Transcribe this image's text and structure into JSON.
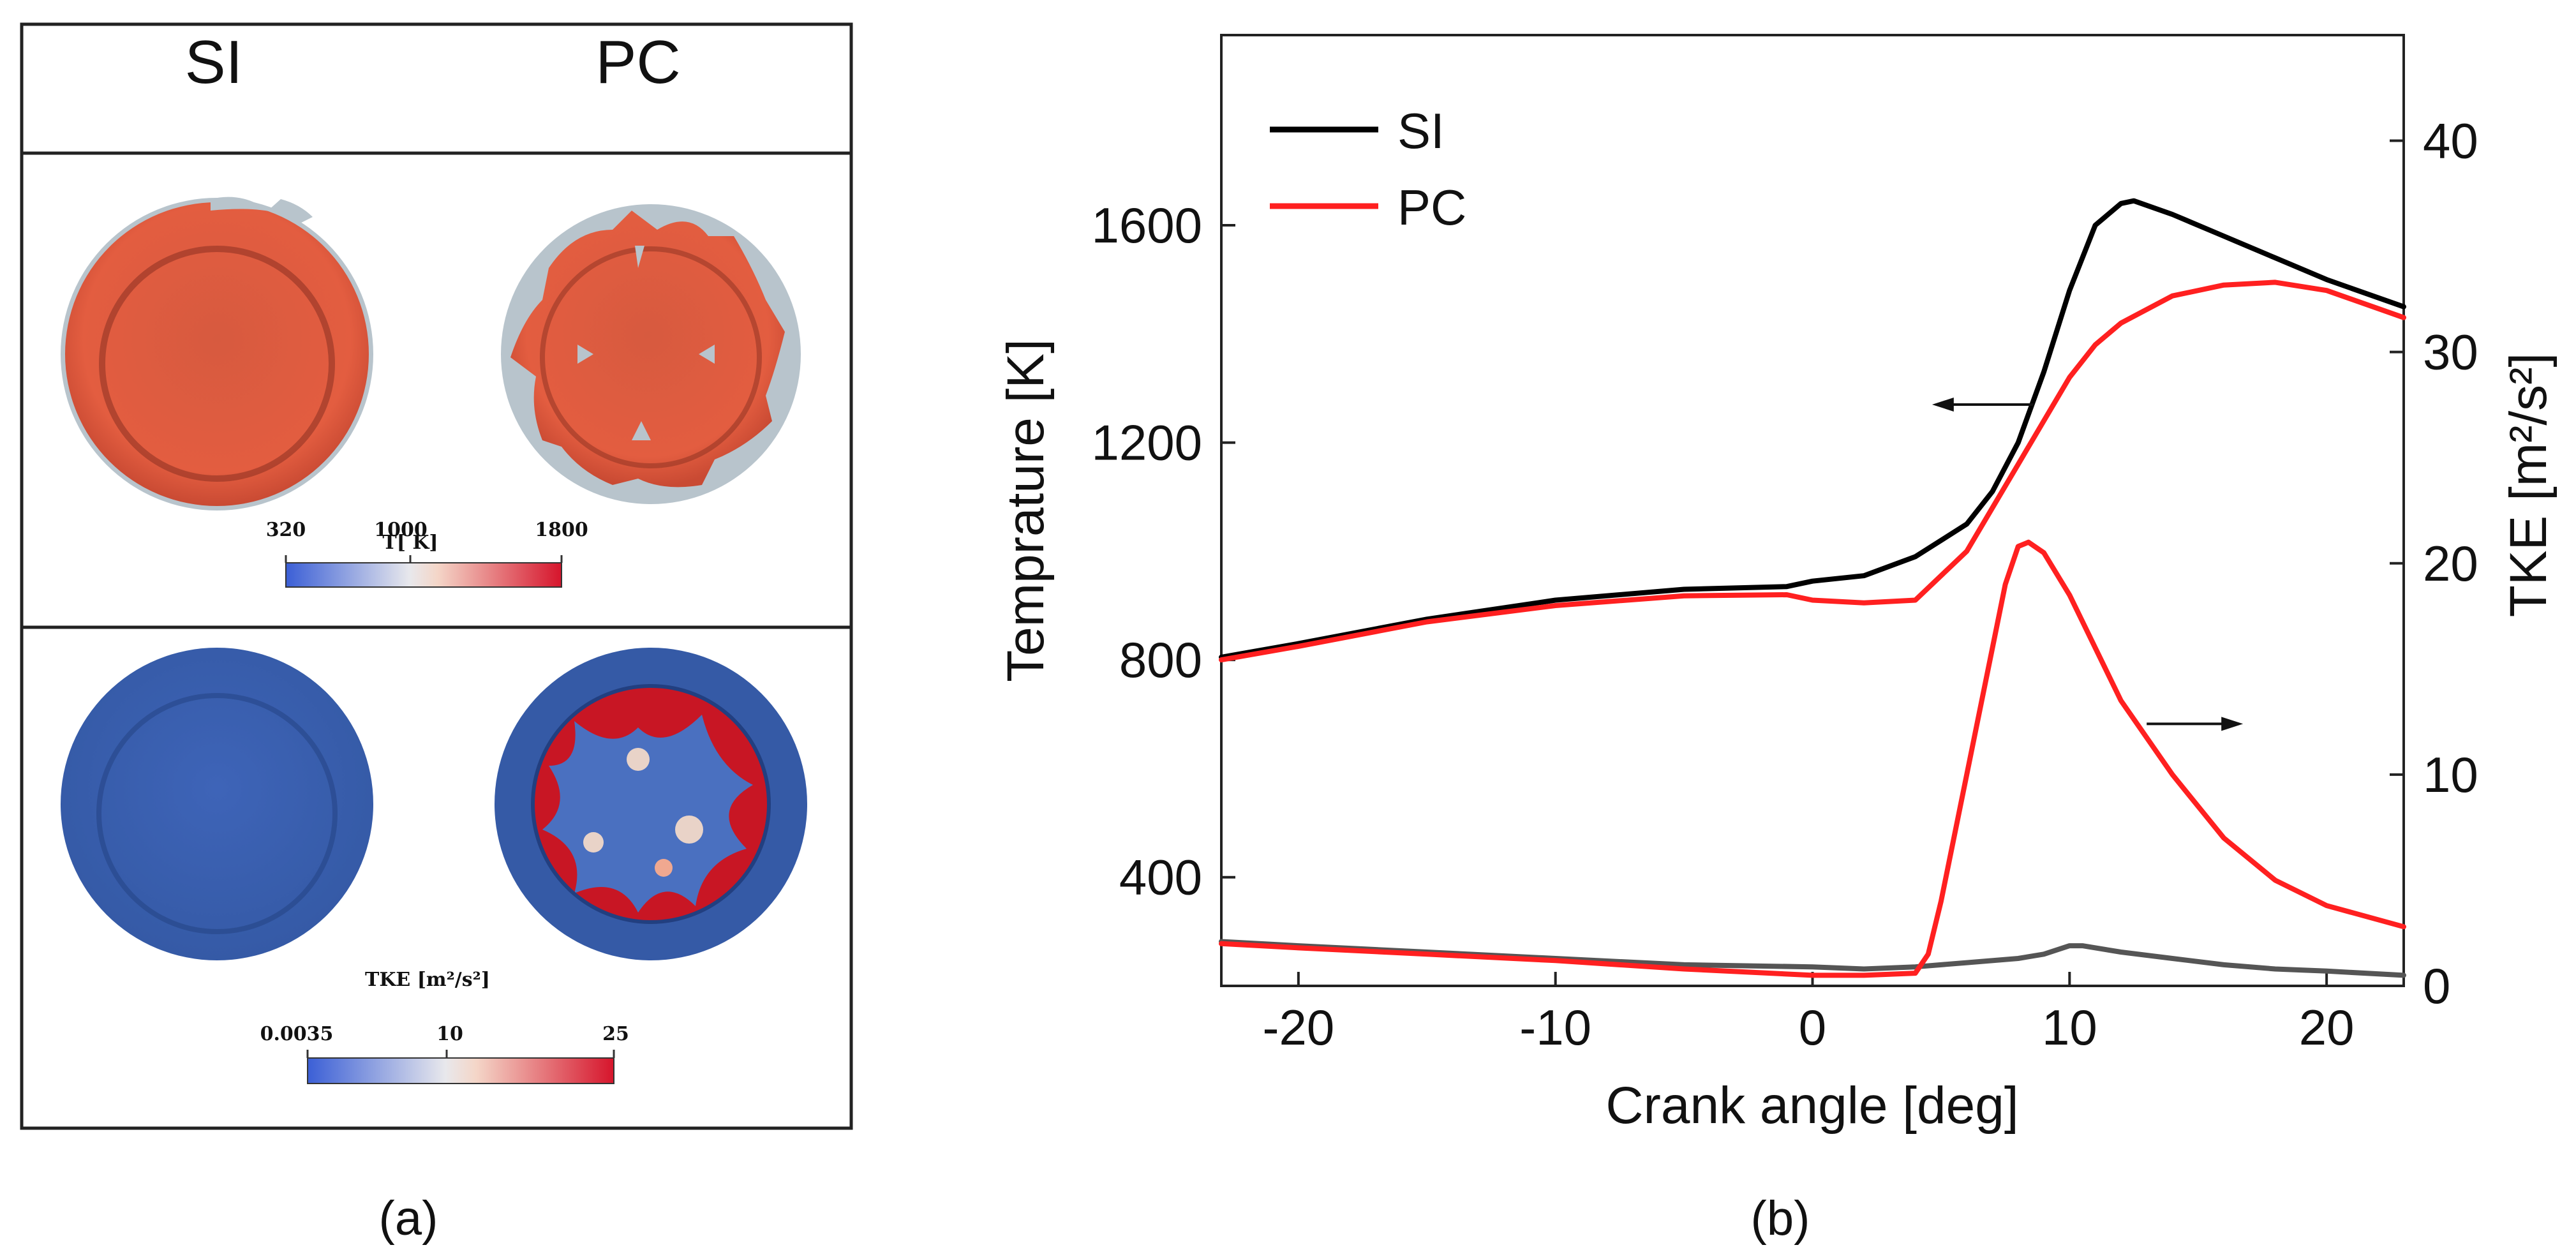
{
  "panel_a": {
    "col_left": "SI",
    "col_right": "PC",
    "temp_colorbar": {
      "title": "T[ K]",
      "ticks": [
        "320",
        "1000",
        "1800"
      ]
    },
    "tke_colorbar": {
      "title": "TKE [m²/s²]",
      "ticks": [
        "0.0035",
        "10",
        "25"
      ]
    },
    "caption": "(a)"
  },
  "panel_b": {
    "caption": "(b)"
  },
  "colors": {
    "SI": "#000000",
    "PC": "#ff2020",
    "SI_tke": "#555555",
    "temp_field": "#e0553a",
    "cold_gray": "#b8c4cc",
    "tke_blue": "#3f63b4"
  },
  "chart_data": {
    "type": "line",
    "title": "",
    "xlabel": "Crank angle [deg]",
    "ylabel": "Temprature [K]",
    "y2label": "TKE [m²/s²]",
    "xlim": [
      -23,
      23
    ],
    "ylim": [
      200,
      1950
    ],
    "y2lim": [
      0,
      45
    ],
    "xticks": [
      "-20",
      "-10",
      "0",
      "10",
      "20"
    ],
    "xtick_values": [
      -20,
      -10,
      0,
      10,
      20
    ],
    "yticks": [
      "400",
      "800",
      "1200",
      "1600"
    ],
    "ytick_values": [
      400,
      800,
      1200,
      1600
    ],
    "y2ticks": [
      "0",
      "10",
      "20",
      "30",
      "40"
    ],
    "y2tick_values": [
      0,
      10,
      20,
      30,
      40
    ],
    "legend": [
      "SI",
      "PC"
    ],
    "legend_position": "top-left",
    "series": [
      {
        "name": "SI",
        "axis": "left",
        "color": "#000000",
        "x": [
          -23,
          -20,
          -15,
          -10,
          -5,
          -1,
          0,
          2,
          4,
          6,
          7,
          8,
          9,
          10,
          11,
          12,
          12.5,
          14,
          16,
          18,
          20,
          23
        ],
        "y": [
          805,
          830,
          875,
          910,
          930,
          935,
          945,
          955,
          990,
          1050,
          1110,
          1200,
          1330,
          1480,
          1600,
          1640,
          1645,
          1620,
          1580,
          1540,
          1500,
          1450
        ]
      },
      {
        "name": "PC",
        "axis": "left",
        "color": "#ff2020",
        "x": [
          -23,
          -20,
          -15,
          -10,
          -5,
          -1,
          0,
          2,
          4,
          6,
          7,
          8,
          9,
          10,
          11,
          12,
          14,
          16,
          18,
          20,
          23
        ],
        "y": [
          800,
          825,
          870,
          900,
          918,
          920,
          910,
          905,
          910,
          1000,
          1080,
          1160,
          1240,
          1320,
          1380,
          1420,
          1470,
          1490,
          1495,
          1480,
          1430
        ]
      },
      {
        "name": "SI TKE",
        "axis": "right",
        "color": "#555555",
        "x": [
          -23,
          -20,
          -15,
          -10,
          -5,
          0,
          2,
          4,
          6,
          8,
          9,
          10,
          10.5,
          12,
          14,
          16,
          18,
          20,
          23
        ],
        "y": [
          2.1,
          1.9,
          1.6,
          1.3,
          1.0,
          0.9,
          0.8,
          0.9,
          1.1,
          1.3,
          1.5,
          1.9,
          1.9,
          1.6,
          1.3,
          1.0,
          0.8,
          0.7,
          0.5
        ]
      },
      {
        "name": "PC TKE",
        "axis": "right",
        "color": "#ff2020",
        "x": [
          -23,
          -20,
          -15,
          -10,
          -5,
          0,
          2,
          4,
          4.5,
          5,
          6,
          7,
          7.5,
          8,
          8.4,
          9,
          10,
          11,
          12,
          14,
          16,
          18,
          20,
          23
        ],
        "y": [
          2.0,
          1.8,
          1.5,
          1.2,
          0.8,
          0.5,
          0.5,
          0.6,
          1.5,
          4.0,
          10.0,
          16.0,
          19.0,
          20.8,
          21.0,
          20.5,
          18.5,
          16.0,
          13.5,
          10.0,
          7.0,
          5.0,
          3.8,
          2.8
        ]
      }
    ],
    "annotations": [
      {
        "type": "arrow",
        "direction": "left",
        "x_data": [
          4.8,
          8.6
        ],
        "y_data": 1270,
        "meaning": "Temperature axis"
      },
      {
        "type": "arrow",
        "direction": "right",
        "x_data": [
          13.0,
          16.6
        ],
        "y2_data": 12.4,
        "meaning": "TKE axis"
      }
    ]
  }
}
